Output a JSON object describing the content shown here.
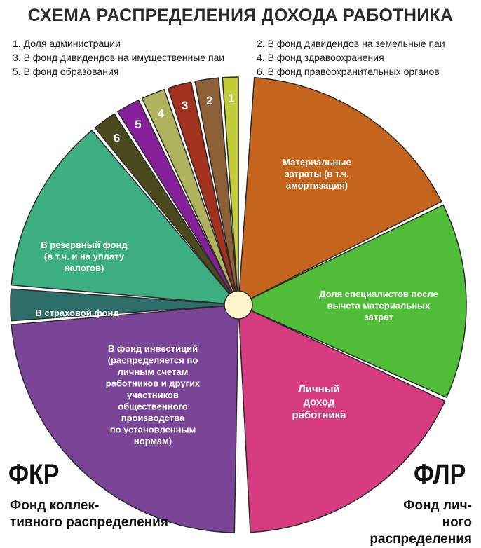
{
  "title": "СХЕМА РАСПРЕДЕЛЕНИЯ ДОХОДА РАБОТНИКА",
  "legend": [
    "1. Доля администрации",
    "2. В фонд дивидендов на земельные паи",
    "3. В фонд дивидендов на имущественные паи",
    "4. В фонд здравоохранения",
    "5. В фонд образования",
    "6. В фонд правоохранительных органов"
  ],
  "segments": [
    {
      "label": "Материальные затраты (в т.ч. амортизация)",
      "color": "#c5651d"
    },
    {
      "label": "Доля специалистов после вычета материальных затрат",
      "color": "#4fbd38"
    },
    {
      "label": "Личный доход работника",
      "color": "#d83c80"
    },
    {
      "label": "В фонд инвестиций (распределяется по личным счетам работников и других участников общественного производства по установленным нормам)",
      "color": "#7a4596"
    },
    {
      "label": "В страховой фонд",
      "color": "#2d6e68"
    },
    {
      "label": "В резервный фонд (в т.ч. и на уплату налогов)",
      "color": "#3cae82"
    },
    {
      "label": "6",
      "color": "#4a4a1e"
    },
    {
      "label": "5",
      "color": "#86209a"
    },
    {
      "label": "4",
      "color": "#b0b25e"
    },
    {
      "label": "3",
      "color": "#a2321e"
    },
    {
      "label": "2",
      "color": "#8d6038"
    },
    {
      "label": "1",
      "color": "#c2cd38"
    }
  ],
  "fkr": {
    "code": "ФКР",
    "name_line1": "Фонд коллек-",
    "name_line2": "тивного распределения"
  },
  "flr": {
    "code": "ФЛР",
    "name_line1": "Фонд  лич-",
    "name_line2": "ного распределения"
  }
}
